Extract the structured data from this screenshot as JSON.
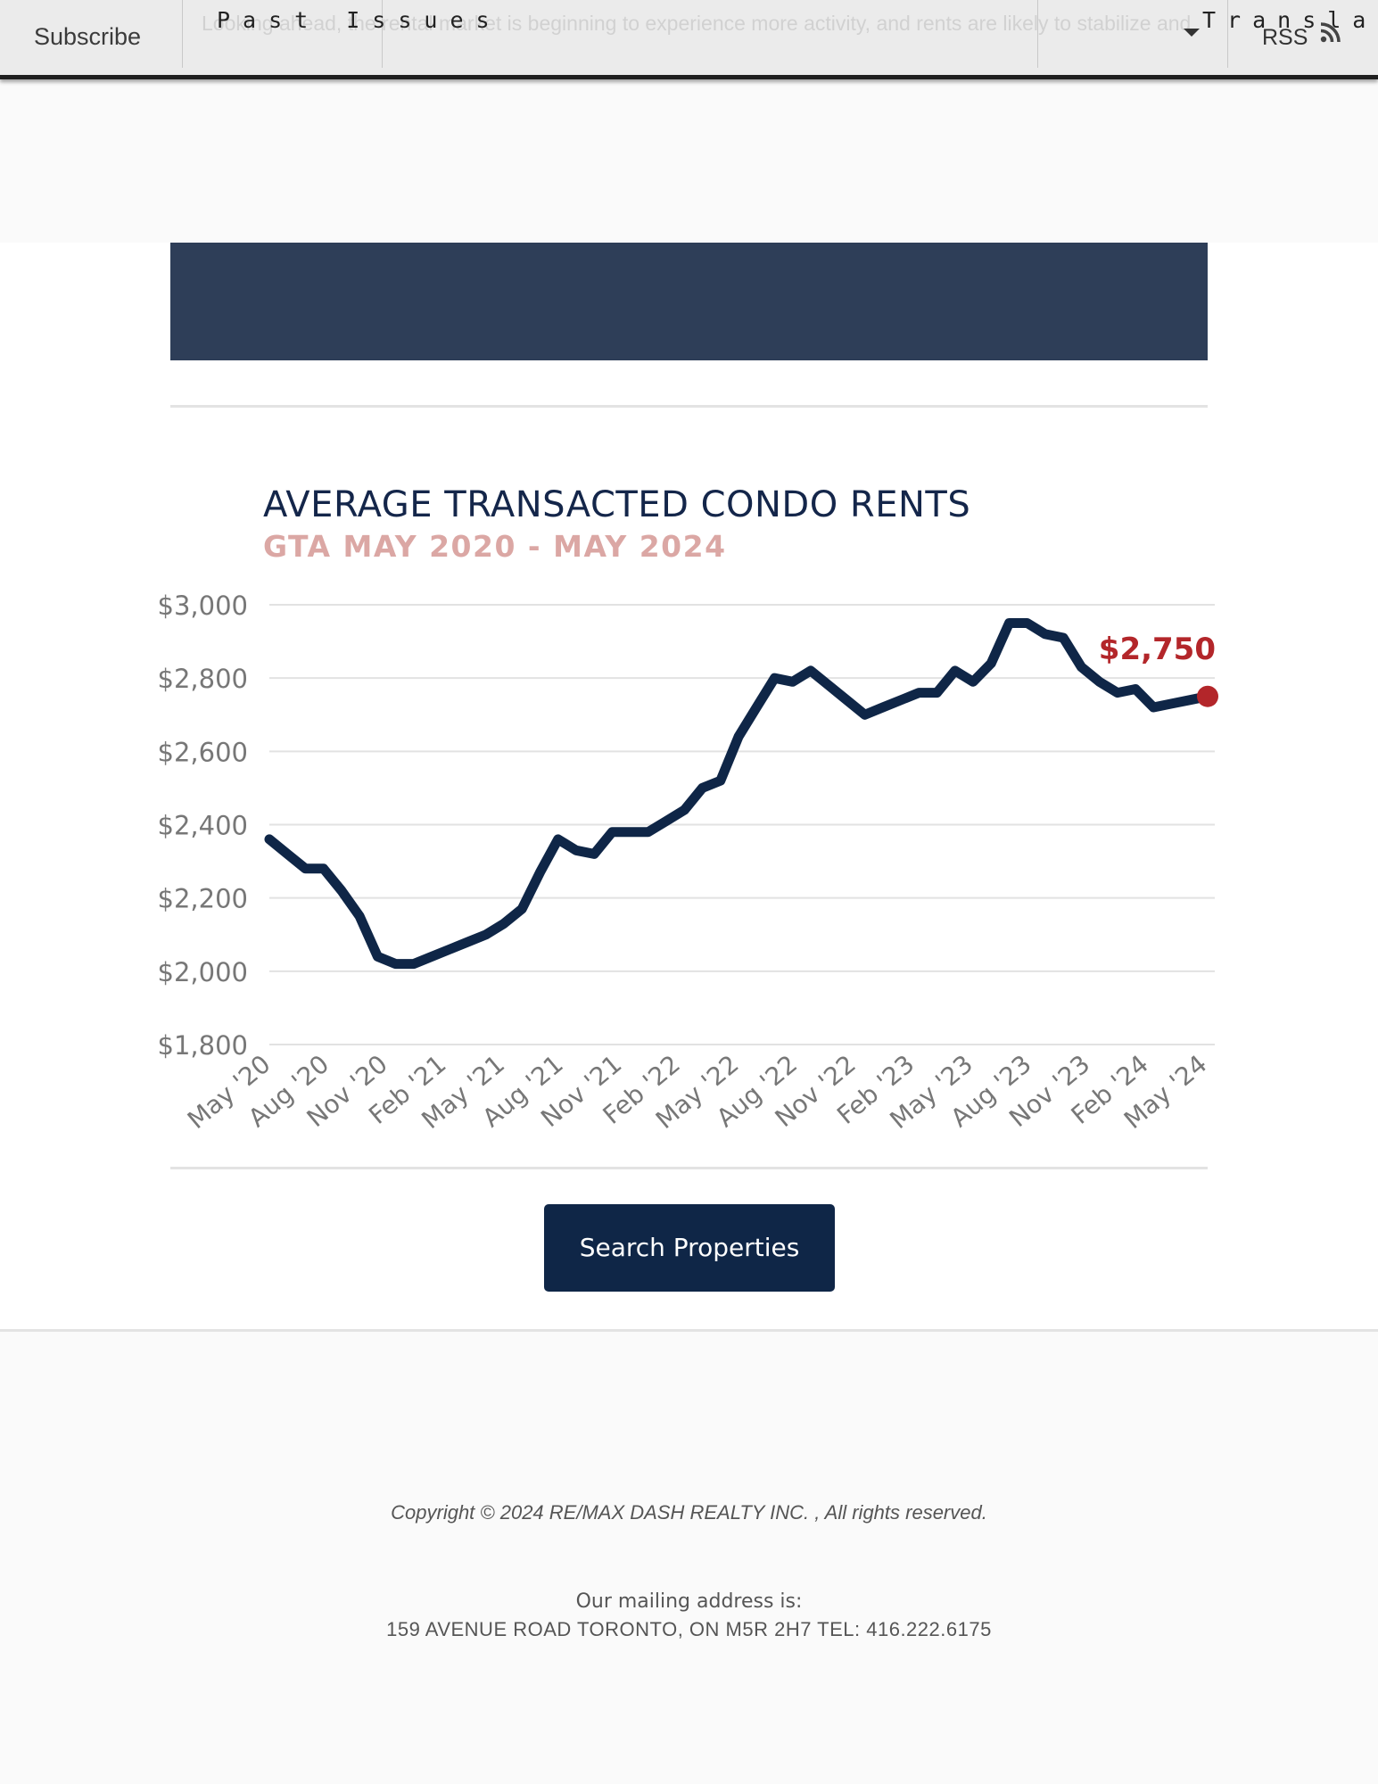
{
  "nav": {
    "subscribe": "Subscribe",
    "past_issues": "Past Issues",
    "translate": "Translate",
    "rss": "RSS",
    "background_text": "Looking ahead, the rental market is beginning to experience more activity, and rents are likely to stabilize and post moderate increases moving forward."
  },
  "chart_data": {
    "type": "line",
    "title": "AVERAGE TRANSACTED CONDO RENTS",
    "subtitle": "GTA MAY 2020 - MAY 2024",
    "xlabel": "",
    "ylabel": "",
    "ylim": [
      1800,
      3000
    ],
    "y_ticks": [
      3000,
      2800,
      2600,
      2400,
      2200,
      2000,
      1800
    ],
    "y_tick_labels": [
      "$3,000",
      "$2,800",
      "$2,600",
      "$2,400",
      "$2,200",
      "$2,000",
      "$1,800"
    ],
    "x_tick_labels": [
      "May '20",
      "Aug '20",
      "Nov '20",
      "Feb '21",
      "May '21",
      "Aug '21",
      "Nov '21",
      "Feb '22",
      "May '22",
      "Aug '22",
      "Nov '22",
      "Feb '23",
      "May '23",
      "Aug '23",
      "Nov '23",
      "Feb '24",
      "May '24"
    ],
    "grid": true,
    "legend": "none",
    "series": [
      {
        "values": [
          2360,
          2320,
          2280,
          2280,
          2220,
          2150,
          2040,
          2020,
          2020,
          2040,
          2060,
          2080,
          2100,
          2130,
          2170,
          2270,
          2360,
          2330,
          2320,
          2380,
          2380,
          2380,
          2410,
          2440,
          2500,
          2520,
          2640,
          2720,
          2800,
          2790,
          2820,
          2780,
          2740,
          2700,
          2720,
          2740,
          2760,
          2760,
          2820,
          2790,
          2840,
          2950,
          2950,
          2920,
          2910,
          2830,
          2790,
          2760,
          2770,
          2720,
          2730,
          2740,
          2750
        ],
        "color": "#0f2647"
      }
    ],
    "annotation": {
      "label": "$2,750",
      "value": 2750,
      "color": "#b3262a"
    }
  },
  "button": {
    "search": "Search Properties"
  },
  "footer": {
    "copyright": "Copyright © 2024  RE/MAX DASH REALTY INC. , All rights reserved.",
    "mailing_label": "Our mailing address is:",
    "address": "159 AVENUE ROAD TORONTO, ON M5R 2H7 TEL: 416.222.6175"
  }
}
